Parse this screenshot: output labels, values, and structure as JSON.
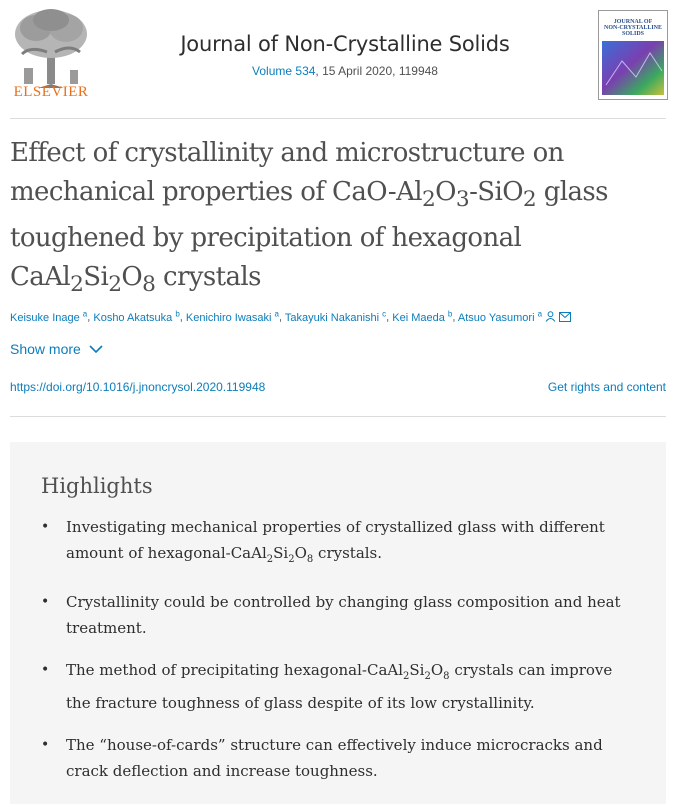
{
  "header": {
    "publisher": "ELSEVIER",
    "journal_title": "Journal of Non-Crystalline Solids",
    "volume": "Volume 534",
    "date_article": ", 15 April 2020, 119948",
    "cover_title_line1": "JOURNAL OF",
    "cover_title_line2": "NON-CRYSTALLINE SOLIDS"
  },
  "article": {
    "title_line1": "Effect of crystallinity and microstructure on",
    "title_line2_a": "mechanical properties of CaO-Al",
    "title_line2_b": "O",
    "title_line2_c": "-SiO",
    "title_line2_d": " glass",
    "title_line3": "toughened by precipitation of hexagonal",
    "title_line4_a": "CaAl",
    "title_line4_b": "Si",
    "title_line4_c": "O",
    "title_line4_d": " crystals",
    "sub2": "2",
    "sub3": "3",
    "sub8": "8",
    "authors": [
      {
        "name": "Keisuke Inage",
        "aff": "a"
      },
      {
        "name": "Kosho Akatsuka",
        "aff": "b"
      },
      {
        "name": "Kenichiro Iwasaki",
        "aff": "a"
      },
      {
        "name": "Takayuki Nakanishi",
        "aff": "c"
      },
      {
        "name": "Kei Maeda",
        "aff": "b"
      },
      {
        "name": "Atsuo Yasumori",
        "aff": "a"
      }
    ],
    "author_sep": ",",
    "show_more": "Show more",
    "doi": "https://doi.org/10.1016/j.jnoncrysol.2020.119948",
    "rights": "Get rights and content"
  },
  "highlights": {
    "heading": "Highlights",
    "item1_a": "Investigating mechanical properties of crystallized glass with different amount of hexagonal-CaAl",
    "item1_b": "Si",
    "item1_c": "O",
    "item1_d": " crystals.",
    "item2": "Crystallinity could be controlled by changing glass composition and heat treatment.",
    "item3_a": "The method of precipitating hexagonal-CaAl",
    "item3_b": "Si",
    "item3_c": "O",
    "item3_d": " crystals can improve the fracture toughness of glass despite of its low crystallinity.",
    "item4": "The “house-of-cards” structure can effectively induce microcracks and crack deflection and increase toughness."
  },
  "icons": {
    "person": "person-icon",
    "email": "envelope-icon",
    "chevron": "chevron-down-icon"
  },
  "colors": {
    "link": "#0c7dbb",
    "elsevier_orange": "#e9711c",
    "highlights_bg": "#f5f5f5"
  }
}
